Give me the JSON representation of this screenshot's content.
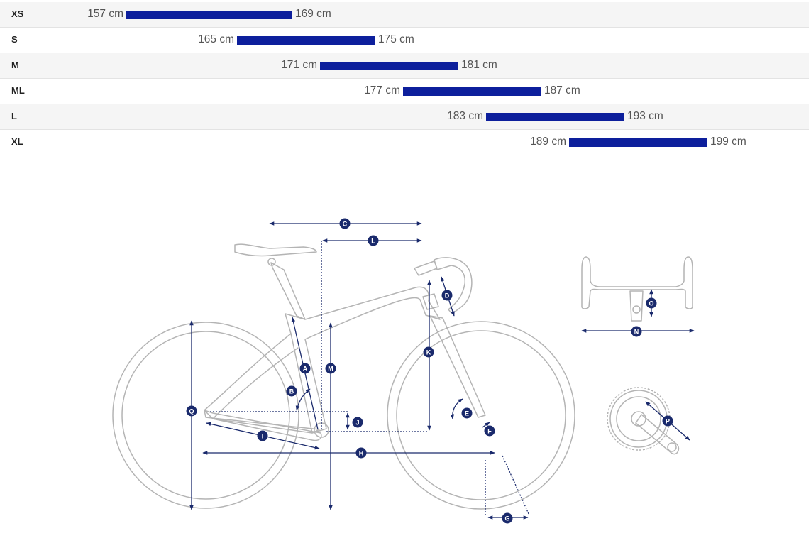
{
  "colors": {
    "bar": "#0d1f9c",
    "dimension": "#1a2a6c",
    "outline": "#b4b4b4"
  },
  "size_chart": {
    "unit": "cm",
    "scale": {
      "min": 157,
      "max": 199
    },
    "rows": [
      {
        "size": "XS",
        "min_label": "157 cm",
        "max_label": "169 cm",
        "min": 157,
        "max": 169
      },
      {
        "size": "S",
        "min_label": "165 cm",
        "max_label": "175 cm",
        "min": 165,
        "max": 175
      },
      {
        "size": "M",
        "min_label": "171 cm",
        "max_label": "181 cm",
        "min": 171,
        "max": 181
      },
      {
        "size": "ML",
        "min_label": "177 cm",
        "max_label": "187 cm",
        "min": 177,
        "max": 187
      },
      {
        "size": "L",
        "min_label": "183 cm",
        "max_label": "193 cm",
        "min": 183,
        "max": 193
      },
      {
        "size": "XL",
        "min_label": "189 cm",
        "max_label": "199 cm",
        "min": 189,
        "max": 199
      }
    ]
  },
  "geometry_labels": {
    "A": "A",
    "B": "B",
    "C": "C",
    "D": "D",
    "E": "E",
    "F": "F",
    "G": "G",
    "H": "H",
    "I": "I",
    "J": "J",
    "K": "K",
    "L": "L",
    "M": "M",
    "N": "N",
    "O": "O",
    "P": "P",
    "Q": "Q"
  }
}
